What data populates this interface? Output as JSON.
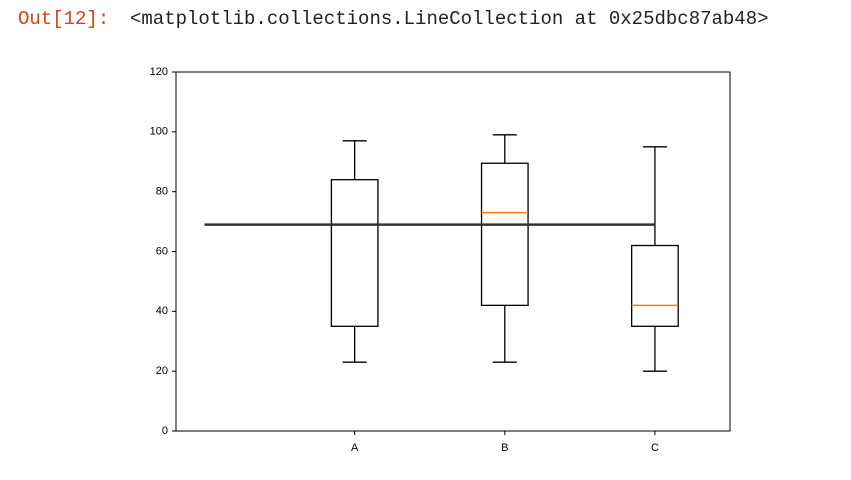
{
  "prompt": "Out[12]:",
  "output": "<matplotlib.collections.LineCollection at 0x25dbc87ab48>",
  "chart_data": {
    "type": "box",
    "xlim": [
      -0.19,
      3.5
    ],
    "xticks": [
      {
        "value": 1,
        "label": "A"
      },
      {
        "value": 2,
        "label": "B"
      },
      {
        "value": 3,
        "label": "C"
      }
    ],
    "ylim": [
      0,
      120
    ],
    "yticks": [
      0,
      20,
      40,
      60,
      80,
      100,
      120
    ],
    "color": "#000000",
    "median_color": "#ff7f0e",
    "boxes": [
      {
        "whislo": 23,
        "q1": 35,
        "med": 69,
        "q3": 84,
        "whishi": 97
      },
      {
        "whislo": 23,
        "q1": 42,
        "med": 73,
        "q3": 89.5,
        "whishi": 99
      },
      {
        "whislo": 20,
        "q1": 35,
        "med": 42,
        "q3": 62,
        "whishi": 95
      }
    ],
    "hline": {
      "y": 69,
      "xmin": 0,
      "xmax": 3,
      "color": "#333333"
    }
  }
}
